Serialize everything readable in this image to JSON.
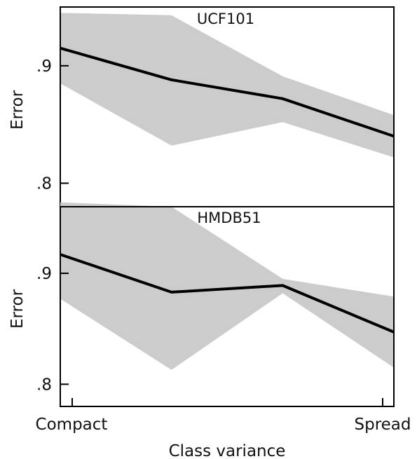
{
  "colors": {
    "line": "#000000",
    "band": "#cccccc",
    "axis": "#000000"
  },
  "xlabel": "Class variance",
  "x_tick_labels": [
    "Compact",
    "Spread"
  ],
  "chart_data": [
    {
      "type": "line",
      "title": "UCF101",
      "ylabel": "Error",
      "x": [
        0,
        1,
        2,
        3
      ],
      "y_tick_values": [
        0.8,
        0.9
      ],
      "y_tick_labels": [
        ".8",
        ".9"
      ],
      "ylim": [
        0.78,
        0.95
      ],
      "series": [
        {
          "values": [
            0.915,
            0.888,
            0.872,
            0.84
          ]
        }
      ],
      "band_upper": [
        0.945,
        0.943,
        0.891,
        0.858
      ],
      "band_lower": [
        0.885,
        0.832,
        0.852,
        0.822
      ]
    },
    {
      "type": "line",
      "title": "HMDB51",
      "ylabel": "Error",
      "x": [
        0,
        1,
        2,
        3
      ],
      "y_tick_values": [
        0.8,
        0.9
      ],
      "y_tick_labels": [
        ".8",
        ".9"
      ],
      "ylim": [
        0.78,
        0.96
      ],
      "series": [
        {
          "values": [
            0.917,
            0.883,
            0.889,
            0.847
          ]
        }
      ],
      "band_upper": [
        0.964,
        0.96,
        0.895,
        0.879
      ],
      "band_lower": [
        0.877,
        0.813,
        0.882,
        0.815
      ]
    }
  ]
}
